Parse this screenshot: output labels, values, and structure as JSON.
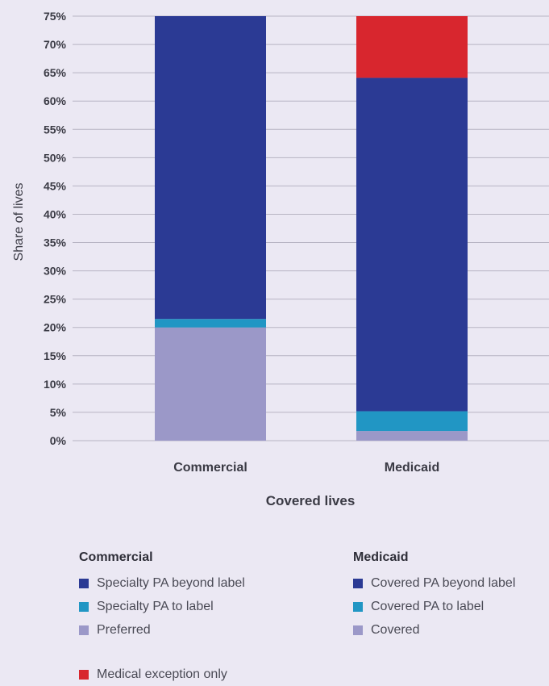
{
  "chart_data": {
    "type": "bar",
    "stacked": true,
    "categories": [
      "Commercial",
      "Medicaid"
    ],
    "ylabel": "Share of lives",
    "xlabel": "Covered lives",
    "ylim": [
      0,
      75
    ],
    "yticks": [
      0,
      5,
      10,
      15,
      20,
      25,
      30,
      35,
      40,
      45,
      50,
      55,
      60,
      65,
      70,
      75
    ],
    "tick_suffix": "%",
    "grid": true,
    "segments": [
      {
        "category": "Commercial",
        "series": "Preferred",
        "value": 20,
        "color": "#9b98c8"
      },
      {
        "category": "Commercial",
        "series": "Specialty PA to label",
        "value": 1.5,
        "color": "#2196c4"
      },
      {
        "category": "Commercial",
        "series": "Specialty PA beyond label",
        "value": 53.5,
        "color": "#2b3a94"
      },
      {
        "category": "Medicaid",
        "series": "Covered",
        "value": 1.7,
        "color": "#9b98c8"
      },
      {
        "category": "Medicaid",
        "series": "Covered PA to label",
        "value": 3.5,
        "color": "#2196c4"
      },
      {
        "category": "Medicaid",
        "series": "Covered PA beyond label",
        "value": 58.9,
        "color": "#2b3a94"
      },
      {
        "category": "Medicaid",
        "series": "Medical exception only",
        "value": 10.9,
        "color": "#d8262e"
      }
    ]
  },
  "legend": {
    "commercial": {
      "title": "Commercial",
      "items": [
        {
          "label": "Specialty PA beyond label",
          "color": "#2b3a94"
        },
        {
          "label": "Specialty PA to label",
          "color": "#2196c4"
        },
        {
          "label": "Preferred",
          "color": "#9b98c8"
        }
      ]
    },
    "medicaid": {
      "title": "Medicaid",
      "items": [
        {
          "label": "Covered PA beyond label",
          "color": "#2b3a94"
        },
        {
          "label": "Covered PA to label",
          "color": "#2196c4"
        },
        {
          "label": "Covered",
          "color": "#9b98c8"
        }
      ]
    },
    "other": {
      "items": [
        {
          "label": "Medical exception only",
          "color": "#d8262e"
        }
      ]
    }
  }
}
